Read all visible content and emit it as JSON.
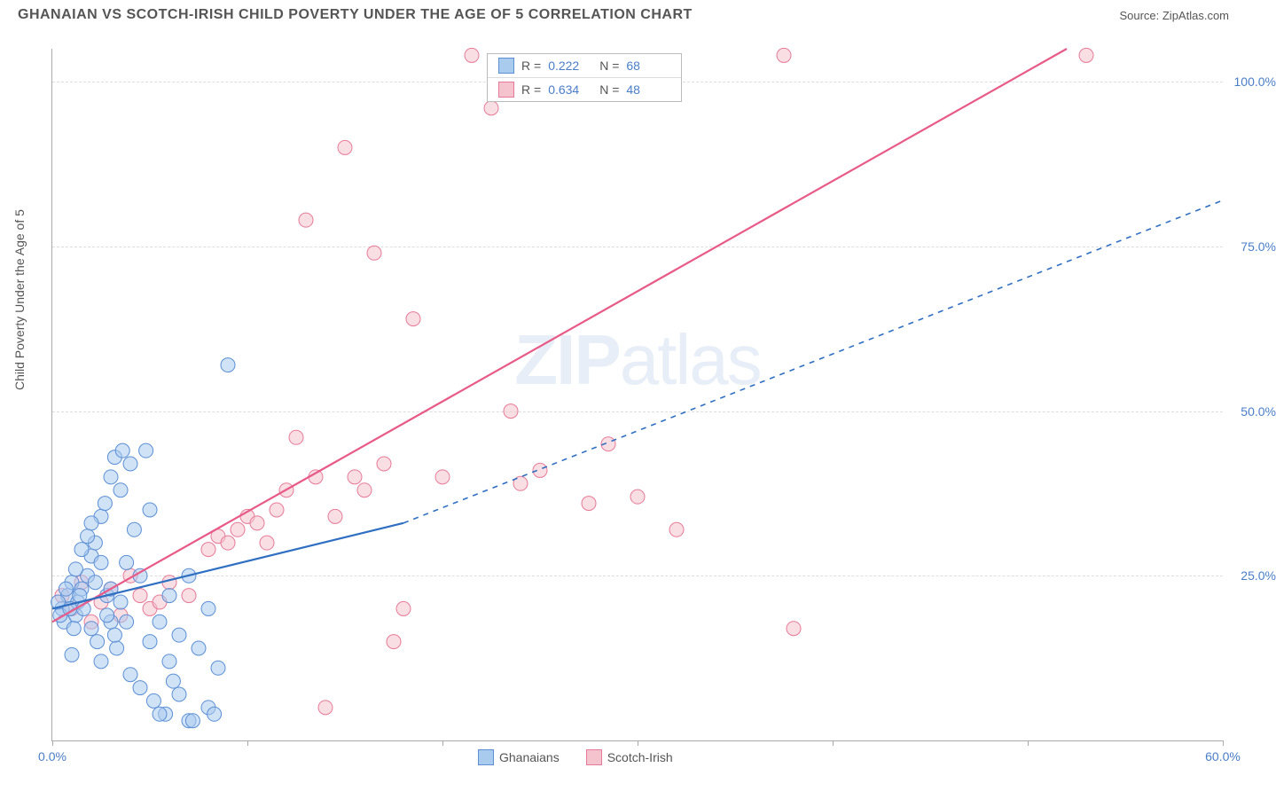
{
  "title": "GHANAIAN VS SCOTCH-IRISH CHILD POVERTY UNDER THE AGE OF 5 CORRELATION CHART",
  "source": "Source: ZipAtlas.com",
  "ylabel": "Child Poverty Under the Age of 5",
  "watermark_bold": "ZIP",
  "watermark_light": "atlas",
  "chart": {
    "type": "scatter",
    "background_color": "#ffffff",
    "grid_color": "#dddddd",
    "axis_color": "#aaaaaa",
    "tick_label_color": "#4a7ec9",
    "xlim": [
      0,
      60
    ],
    "ylim": [
      0,
      105
    ],
    "xticks": [
      0,
      10,
      20,
      30,
      40,
      50,
      60
    ],
    "xtick_labels": {
      "0": "0.0%",
      "60": "60.0%"
    },
    "yticks": [
      25,
      50,
      75,
      100
    ],
    "ytick_labels": {
      "25": "25.0%",
      "50": "50.0%",
      "75": "75.0%",
      "100": "100.0%"
    },
    "marker_radius": 8,
    "marker_opacity": 0.55,
    "line_width_solid": 2.2,
    "line_width_dash": 1.6,
    "dash_pattern": "6,6"
  },
  "series": {
    "ghanaians": {
      "label": "Ghanaians",
      "color_fill": "#a9cbee",
      "color_stroke": "#5b8fd6",
      "line_color": "#2f6fc2",
      "R": "0.222",
      "N": "68",
      "regression_solid": {
        "x1": 0,
        "y1": 20,
        "x2": 18,
        "y2": 33
      },
      "regression_dash": {
        "x1": 18,
        "y1": 33,
        "x2": 60,
        "y2": 82
      },
      "points": [
        [
          0.5,
          20
        ],
        [
          0.6,
          18
        ],
        [
          0.8,
          22
        ],
        [
          1.0,
          24
        ],
        [
          1.2,
          19
        ],
        [
          1.3,
          21
        ],
        [
          1.5,
          23
        ],
        [
          1.6,
          20
        ],
        [
          1.8,
          25
        ],
        [
          2.0,
          17
        ],
        [
          2.0,
          28
        ],
        [
          2.2,
          30
        ],
        [
          2.3,
          15
        ],
        [
          2.5,
          34
        ],
        [
          2.5,
          12
        ],
        [
          2.7,
          36
        ],
        [
          2.8,
          22
        ],
        [
          3.0,
          40
        ],
        [
          3.0,
          18
        ],
        [
          3.2,
          43
        ],
        [
          3.3,
          14
        ],
        [
          3.5,
          38
        ],
        [
          3.6,
          44
        ],
        [
          3.8,
          27
        ],
        [
          4.0,
          42
        ],
        [
          4.0,
          10
        ],
        [
          4.2,
          32
        ],
        [
          4.5,
          25
        ],
        [
          4.5,
          8
        ],
        [
          4.8,
          44
        ],
        [
          5.0,
          15
        ],
        [
          5.0,
          35
        ],
        [
          5.2,
          6
        ],
        [
          5.5,
          18
        ],
        [
          5.8,
          4
        ],
        [
          6.0,
          12
        ],
        [
          6.0,
          22
        ],
        [
          6.5,
          7
        ],
        [
          6.5,
          16
        ],
        [
          7.0,
          25
        ],
        [
          7.0,
          3
        ],
        [
          7.5,
          14
        ],
        [
          8.0,
          5
        ],
        [
          8.0,
          20
        ],
        [
          8.5,
          11
        ],
        [
          9.0,
          57
        ],
        [
          1.0,
          13
        ],
        [
          1.2,
          26
        ],
        [
          1.5,
          29
        ],
        [
          1.8,
          31
        ],
        [
          2.0,
          33
        ],
        [
          2.2,
          24
        ],
        [
          2.5,
          27
        ],
        [
          2.8,
          19
        ],
        [
          3.0,
          23
        ],
        [
          3.2,
          16
        ],
        [
          3.5,
          21
        ],
        [
          3.8,
          18
        ],
        [
          0.3,
          21
        ],
        [
          0.4,
          19
        ],
        [
          0.7,
          23
        ],
        [
          0.9,
          20
        ],
        [
          1.1,
          17
        ],
        [
          1.4,
          22
        ],
        [
          5.5,
          4
        ],
        [
          6.2,
          9
        ],
        [
          7.2,
          3
        ],
        [
          8.3,
          4
        ]
      ]
    },
    "scotch_irish": {
      "label": "Scotch-Irish",
      "color_fill": "#f4c3ce",
      "color_stroke": "#e77a98",
      "line_color": "#e85a87",
      "R": "0.634",
      "N": "48",
      "regression": {
        "x1": 0,
        "y1": 18,
        "x2": 52,
        "y2": 105
      },
      "points": [
        [
          0.5,
          22
        ],
        [
          1.0,
          20
        ],
        [
          1.5,
          24
        ],
        [
          2.0,
          18
        ],
        [
          2.5,
          21
        ],
        [
          3.0,
          23
        ],
        [
          3.5,
          19
        ],
        [
          4.0,
          25
        ],
        [
          4.5,
          22
        ],
        [
          5.0,
          20
        ],
        [
          5.5,
          21
        ],
        [
          6.0,
          24
        ],
        [
          7.0,
          22
        ],
        [
          8.0,
          29
        ],
        [
          8.5,
          31
        ],
        [
          9.0,
          30
        ],
        [
          9.5,
          32
        ],
        [
          10.0,
          34
        ],
        [
          10.5,
          33
        ],
        [
          11.0,
          30
        ],
        [
          11.5,
          35
        ],
        [
          12.0,
          38
        ],
        [
          12.5,
          46
        ],
        [
          13.0,
          79
        ],
        [
          13.5,
          40
        ],
        [
          14.0,
          5
        ],
        [
          14.5,
          34
        ],
        [
          15.0,
          90
        ],
        [
          15.5,
          40
        ],
        [
          16.0,
          38
        ],
        [
          16.5,
          74
        ],
        [
          17.0,
          42
        ],
        [
          17.5,
          15
        ],
        [
          18.0,
          20
        ],
        [
          18.5,
          64
        ],
        [
          20.0,
          40
        ],
        [
          21.5,
          104
        ],
        [
          22.5,
          96
        ],
        [
          23.5,
          50
        ],
        [
          24.0,
          39
        ],
        [
          25.0,
          41
        ],
        [
          27.5,
          36
        ],
        [
          28.5,
          45
        ],
        [
          30.0,
          37
        ],
        [
          32.0,
          32
        ],
        [
          37.5,
          104
        ],
        [
          38.0,
          17
        ],
        [
          53.0,
          104
        ]
      ]
    }
  },
  "stat_box": {
    "R_label": "R =",
    "N_label": "N ="
  }
}
